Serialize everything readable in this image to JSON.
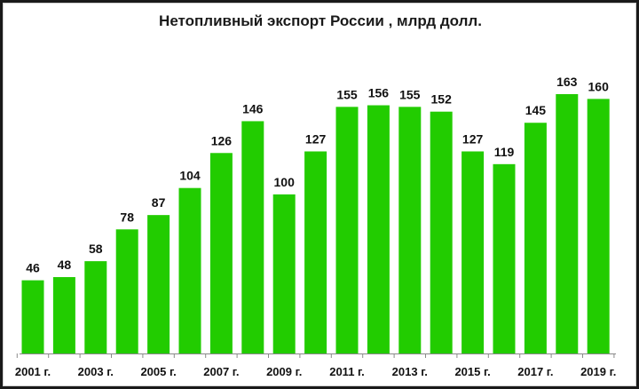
{
  "chart_data": {
    "type": "bar",
    "title": "Нетопливный экспорт России , млрд долл.",
    "categories": [
      "2001",
      "2002",
      "2003",
      "2004",
      "2005",
      "2006",
      "2007",
      "2008",
      "2009",
      "2010",
      "2011",
      "2012",
      "2013",
      "2014",
      "2015",
      "2016",
      "2017",
      "2018",
      "2019"
    ],
    "values": [
      46,
      48,
      58,
      78,
      87,
      104,
      126,
      146,
      100,
      127,
      155,
      156,
      155,
      152,
      127,
      119,
      145,
      163,
      160
    ],
    "tick_labels": [
      "2001 г.",
      "2003 г.",
      "2005 г.",
      "2007 г.",
      "2009 г.",
      "2011 г.",
      "2013 г.",
      "2015 г.",
      "2017 г.",
      "2019 г."
    ],
    "ylim": [
      0,
      176
    ],
    "grid": false,
    "bar_color": "#22cc00",
    "xlabel": "",
    "ylabel": ""
  }
}
